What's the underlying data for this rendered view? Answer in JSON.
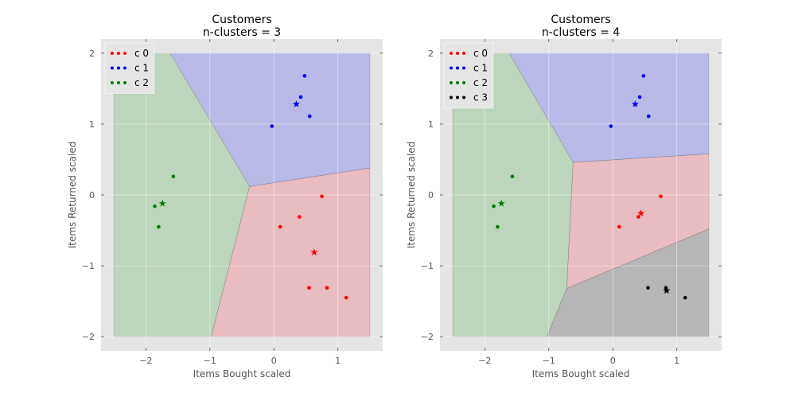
{
  "chart_data": [
    {
      "type": "scatter",
      "title": "Customers\nn-clusters = 3",
      "title_lines": [
        "Customers",
        "n-clusters = 3"
      ],
      "xlabel": "Items Bought scaled",
      "ylabel": "Items Returned scaled",
      "xlim": [
        -2.7,
        1.7
      ],
      "ylim": [
        -2.2,
        2.2
      ],
      "xticks": [
        -2,
        -1,
        0,
        1
      ],
      "yticks": [
        2,
        1,
        0,
        -1,
        -2
      ],
      "xtick_labels": [
        "−2",
        "−1",
        "0",
        "1"
      ],
      "ytick_labels": [
        "2",
        "1",
        "0",
        "−1",
        "−2"
      ],
      "grid": true,
      "legend_position": "upper-left",
      "decision_region_extent": {
        "x": [
          -2.5,
          1.5
        ],
        "y": [
          -2.0,
          2.0
        ]
      },
      "series": [
        {
          "name": "c 0",
          "label": "c 0",
          "color": "#ff0000",
          "region_color": "#e8bcc0",
          "points": [
            [
              0.75,
              -0.02
            ],
            [
              0.4,
              -0.31
            ],
            [
              0.1,
              -0.45
            ],
            [
              0.55,
              -1.31
            ],
            [
              0.83,
              -1.31
            ],
            [
              1.13,
              -1.45
            ]
          ],
          "centroid": [
            0.63,
            -0.81
          ],
          "region": [
            [
              -0.38,
              0.12
            ],
            [
              1.5,
              0.38
            ],
            [
              1.5,
              -2.0
            ],
            [
              -0.98,
              -2.0
            ]
          ]
        },
        {
          "name": "c 1",
          "label": "c 1",
          "color": "#0000ff",
          "region_color": "#babae8",
          "points": [
            [
              0.48,
              1.68
            ],
            [
              0.42,
              1.38
            ],
            [
              0.56,
              1.11
            ],
            [
              -0.03,
              0.97
            ]
          ],
          "centroid": [
            0.35,
            1.28
          ],
          "region": [
            [
              -1.62,
              2.0
            ],
            [
              1.5,
              2.0
            ],
            [
              1.5,
              0.38
            ],
            [
              -0.38,
              0.12
            ]
          ]
        },
        {
          "name": "c 2",
          "label": "c 2",
          "color": "#008000",
          "region_color": "#bcd5bc",
          "points": [
            [
              -1.57,
              0.26
            ],
            [
              -1.86,
              -0.16
            ],
            [
              -1.8,
              -0.45
            ]
          ],
          "centroid": [
            -1.74,
            -0.12
          ],
          "region": [
            [
              -2.5,
              2.0
            ],
            [
              -1.62,
              2.0
            ],
            [
              -0.38,
              0.12
            ],
            [
              -0.98,
              -2.0
            ],
            [
              -2.5,
              -2.0
            ]
          ]
        }
      ]
    },
    {
      "type": "scatter",
      "title": "Customers\nn-clusters = 4",
      "title_lines": [
        "Customers",
        "n-clusters = 4"
      ],
      "xlabel": "Items Bought scaled",
      "ylabel": "Items Returned scaled",
      "xlim": [
        -2.7,
        1.7
      ],
      "ylim": [
        -2.2,
        2.2
      ],
      "xticks": [
        -2,
        -1,
        0,
        1
      ],
      "yticks": [
        2,
        1,
        0,
        -1,
        -2
      ],
      "xtick_labels": [
        "−2",
        "−1",
        "0",
        "1"
      ],
      "ytick_labels": [
        "2",
        "1",
        "0",
        "−1",
        "−2"
      ],
      "grid": true,
      "legend_position": "upper-left",
      "decision_region_extent": {
        "x": [
          -2.5,
          1.5
        ],
        "y": [
          -2.0,
          2.0
        ]
      },
      "series": [
        {
          "name": "c 0",
          "label": "c 0",
          "color": "#ff0000",
          "region_color": "#e8bcc0",
          "points": [
            [
              0.75,
              -0.02
            ],
            [
              0.4,
              -0.31
            ],
            [
              0.1,
              -0.45
            ]
          ],
          "centroid": [
            0.44,
            -0.26
          ],
          "region": [
            [
              -0.62,
              0.46
            ],
            [
              1.5,
              0.58
            ],
            [
              1.5,
              -0.48
            ],
            [
              -0.72,
              -1.32
            ]
          ]
        },
        {
          "name": "c 1",
          "label": "c 1",
          "color": "#0000ff",
          "region_color": "#babae8",
          "points": [
            [
              0.48,
              1.68
            ],
            [
              0.42,
              1.38
            ],
            [
              0.56,
              1.11
            ],
            [
              -0.03,
              0.97
            ]
          ],
          "centroid": [
            0.35,
            1.28
          ],
          "region": [
            [
              -1.62,
              2.0
            ],
            [
              1.5,
              2.0
            ],
            [
              1.5,
              0.58
            ],
            [
              -0.62,
              0.46
            ]
          ]
        },
        {
          "name": "c 2",
          "label": "c 2",
          "color": "#008000",
          "region_color": "#bcd5bc",
          "points": [
            [
              -1.57,
              0.26
            ],
            [
              -1.86,
              -0.16
            ],
            [
              -1.8,
              -0.45
            ]
          ],
          "centroid": [
            -1.74,
            -0.12
          ],
          "region": [
            [
              -2.5,
              2.0
            ],
            [
              -1.62,
              2.0
            ],
            [
              -0.62,
              0.46
            ],
            [
              -0.72,
              -1.32
            ],
            [
              -1.03,
              -2.0
            ],
            [
              -2.5,
              -2.0
            ]
          ]
        },
        {
          "name": "c 3",
          "label": "c 3",
          "color": "#000000",
          "region_color": "#b7b7b7",
          "points": [
            [
              0.55,
              -1.31
            ],
            [
              0.83,
              -1.31
            ],
            [
              1.13,
              -1.45
            ]
          ],
          "centroid": [
            0.84,
            -1.35
          ],
          "region": [
            [
              -0.72,
              -1.32
            ],
            [
              1.5,
              -0.48
            ],
            [
              1.5,
              -2.0
            ],
            [
              -1.03,
              -2.0
            ]
          ]
        }
      ]
    }
  ],
  "colors": {
    "axes_background": "#e5e5e5",
    "grid": "#ffffff",
    "tick_text": "#555555",
    "legend_background": "#e5e5e5"
  }
}
